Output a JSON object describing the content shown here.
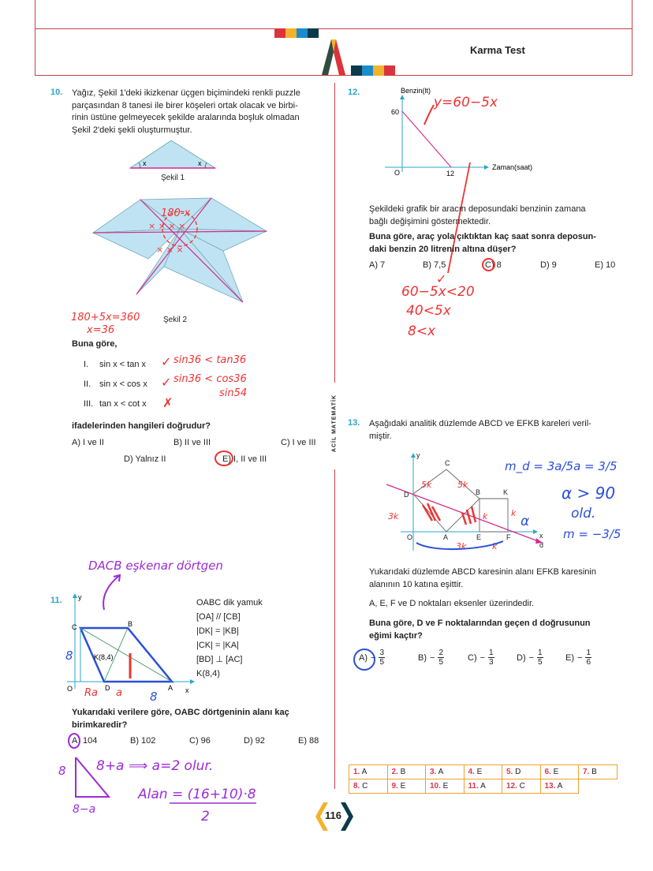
{
  "header": {
    "title": "Karma Test",
    "colors": [
      "#d9343c",
      "#f3b22c",
      "#1a8ccc",
      "#0c3a48"
    ],
    "side_label": "ACİL MATEMATİK"
  },
  "q10": {
    "number": "10.",
    "text": [
      "Yağız, Şekil 1'deki ikizkenar üçgen biçimindeki renkli puzzle",
      "parçasından 8 tanesi ile birer köşeleri ortak olacak ve birbi-",
      "rinin üstüne gelmeyecek şekilde aralarında boşluk olmadan",
      "Şekil 2'deki şekli oluşturmuştur."
    ],
    "fig1_label": "Şekil 1",
    "angle_label": "x",
    "fig2_label": "Şekil 2",
    "prompt": "Buna göre,",
    "statements": [
      {
        "num": "I.",
        "text": "sin x < tan x"
      },
      {
        "num": "II.",
        "text": "sin x < cos x"
      },
      {
        "num": "III.",
        "text": "tan x < cot x"
      }
    ],
    "question": "ifadelerinden hangileri doğrudur?",
    "options": [
      "A) I ve II",
      "B) II ve III",
      "C) I ve III",
      "D) Yalnız II",
      "E) I, II ve III"
    ],
    "handwriting": {
      "calc1": "180+5x=360",
      "calc2": "x=36",
      "center": "180-x",
      "s1": "sin36 < tan36",
      "s2": "sin36 < cos36",
      "s3": "sin54"
    }
  },
  "q11": {
    "number": "11.",
    "facts": [
      "OABC dik yamuk",
      "[OA] // [CB]",
      "|DK| = |KB|",
      "|CK| = |KA|",
      "[BD] ⊥ [AC]",
      "K(8,4)"
    ],
    "labels": {
      "y": "y",
      "x": "x",
      "O": "O",
      "C": "C",
      "B": "B",
      "D": "D",
      "A": "A",
      "K": "K(8,4)"
    },
    "question": [
      "Yukarıdaki verilere göre, OABC dörtgeninin alanı kaç",
      "birimkaredir?"
    ],
    "options": [
      "A) 104",
      "B) 102",
      "C) 96",
      "D) 92",
      "E) 88"
    ],
    "handwriting": {
      "top": "DACB eşkenar dörtgen",
      "line1": "8+a ⟹ a=2 olur.",
      "line2": "Alan = (16+10)·8",
      "line3": "2",
      "side8": "8",
      "bottom8": "8",
      "tri_a": "8−a",
      "tri_8": "8"
    }
  },
  "q12": {
    "number": "12.",
    "graph": {
      "ylabel": "Benzin(lt)",
      "xlabel": "Zaman(saat)",
      "origin": "O",
      "y_tick": "60",
      "x_tick": "12"
    },
    "text": [
      "Şekildeki grafik bir aracın deposundaki benzinin zamana",
      "bağlı değişimini göstermektedir."
    ],
    "question": [
      "Buna göre, araç yola çıktıktan kaç saat sonra deposun-",
      "daki benzin 20 litrenin altına düşer?"
    ],
    "options": [
      "A) 7",
      "B) 7,5",
      "C) 8",
      "D) 9",
      "E) 10"
    ],
    "handwriting": {
      "eq": "y=60−5x",
      "w1": "60−5x<20",
      "w2": "40<5x",
      "w3": "8<x"
    }
  },
  "q13": {
    "number": "13.",
    "text": [
      "Aşağıdaki analitik düzlemde ABCD ve EFKB kareleri veril-",
      "miştir."
    ],
    "labels": {
      "y": "y",
      "x": "x",
      "d": "d",
      "O": "O",
      "A": "A",
      "B": "B",
      "C": "C",
      "D": "D",
      "E": "E",
      "F": "F",
      "K": "K"
    },
    "desc": [
      "Yukarıdaki düzlemde ABCD karesinin alanı EFKB karesinin",
      "alanının 10 katına eşittir."
    ],
    "desc2": "A, E, F ve D noktaları eksenler üzerindedir.",
    "question": [
      "Buna göre, D ve F noktalarından geçen d doğrusunun",
      "eğimi kaçtır?"
    ],
    "options": [
      {
        "letter": "A)",
        "num": "3",
        "den": "5"
      },
      {
        "letter": "B)",
        "num": "2",
        "den": "5"
      },
      {
        "letter": "C)",
        "num": "1",
        "den": "3"
      },
      {
        "letter": "D)",
        "num": "1",
        "den": "5"
      },
      {
        "letter": "E)",
        "num": "1",
        "den": "6"
      }
    ],
    "handwriting": {
      "m1": "m_d = 3a/5a = 3/5",
      "m2": "α > 90",
      "m3": "old.",
      "m4": "m = −3/5"
    }
  },
  "answer_key": [
    [
      "1. A",
      "2. B",
      "3. A",
      "4. E",
      "5. D",
      "6. E",
      "7. B"
    ],
    [
      "8. C",
      "9. E",
      "10. E",
      "11. A",
      "12. C",
      "13. A"
    ]
  ],
  "page_number": "116"
}
